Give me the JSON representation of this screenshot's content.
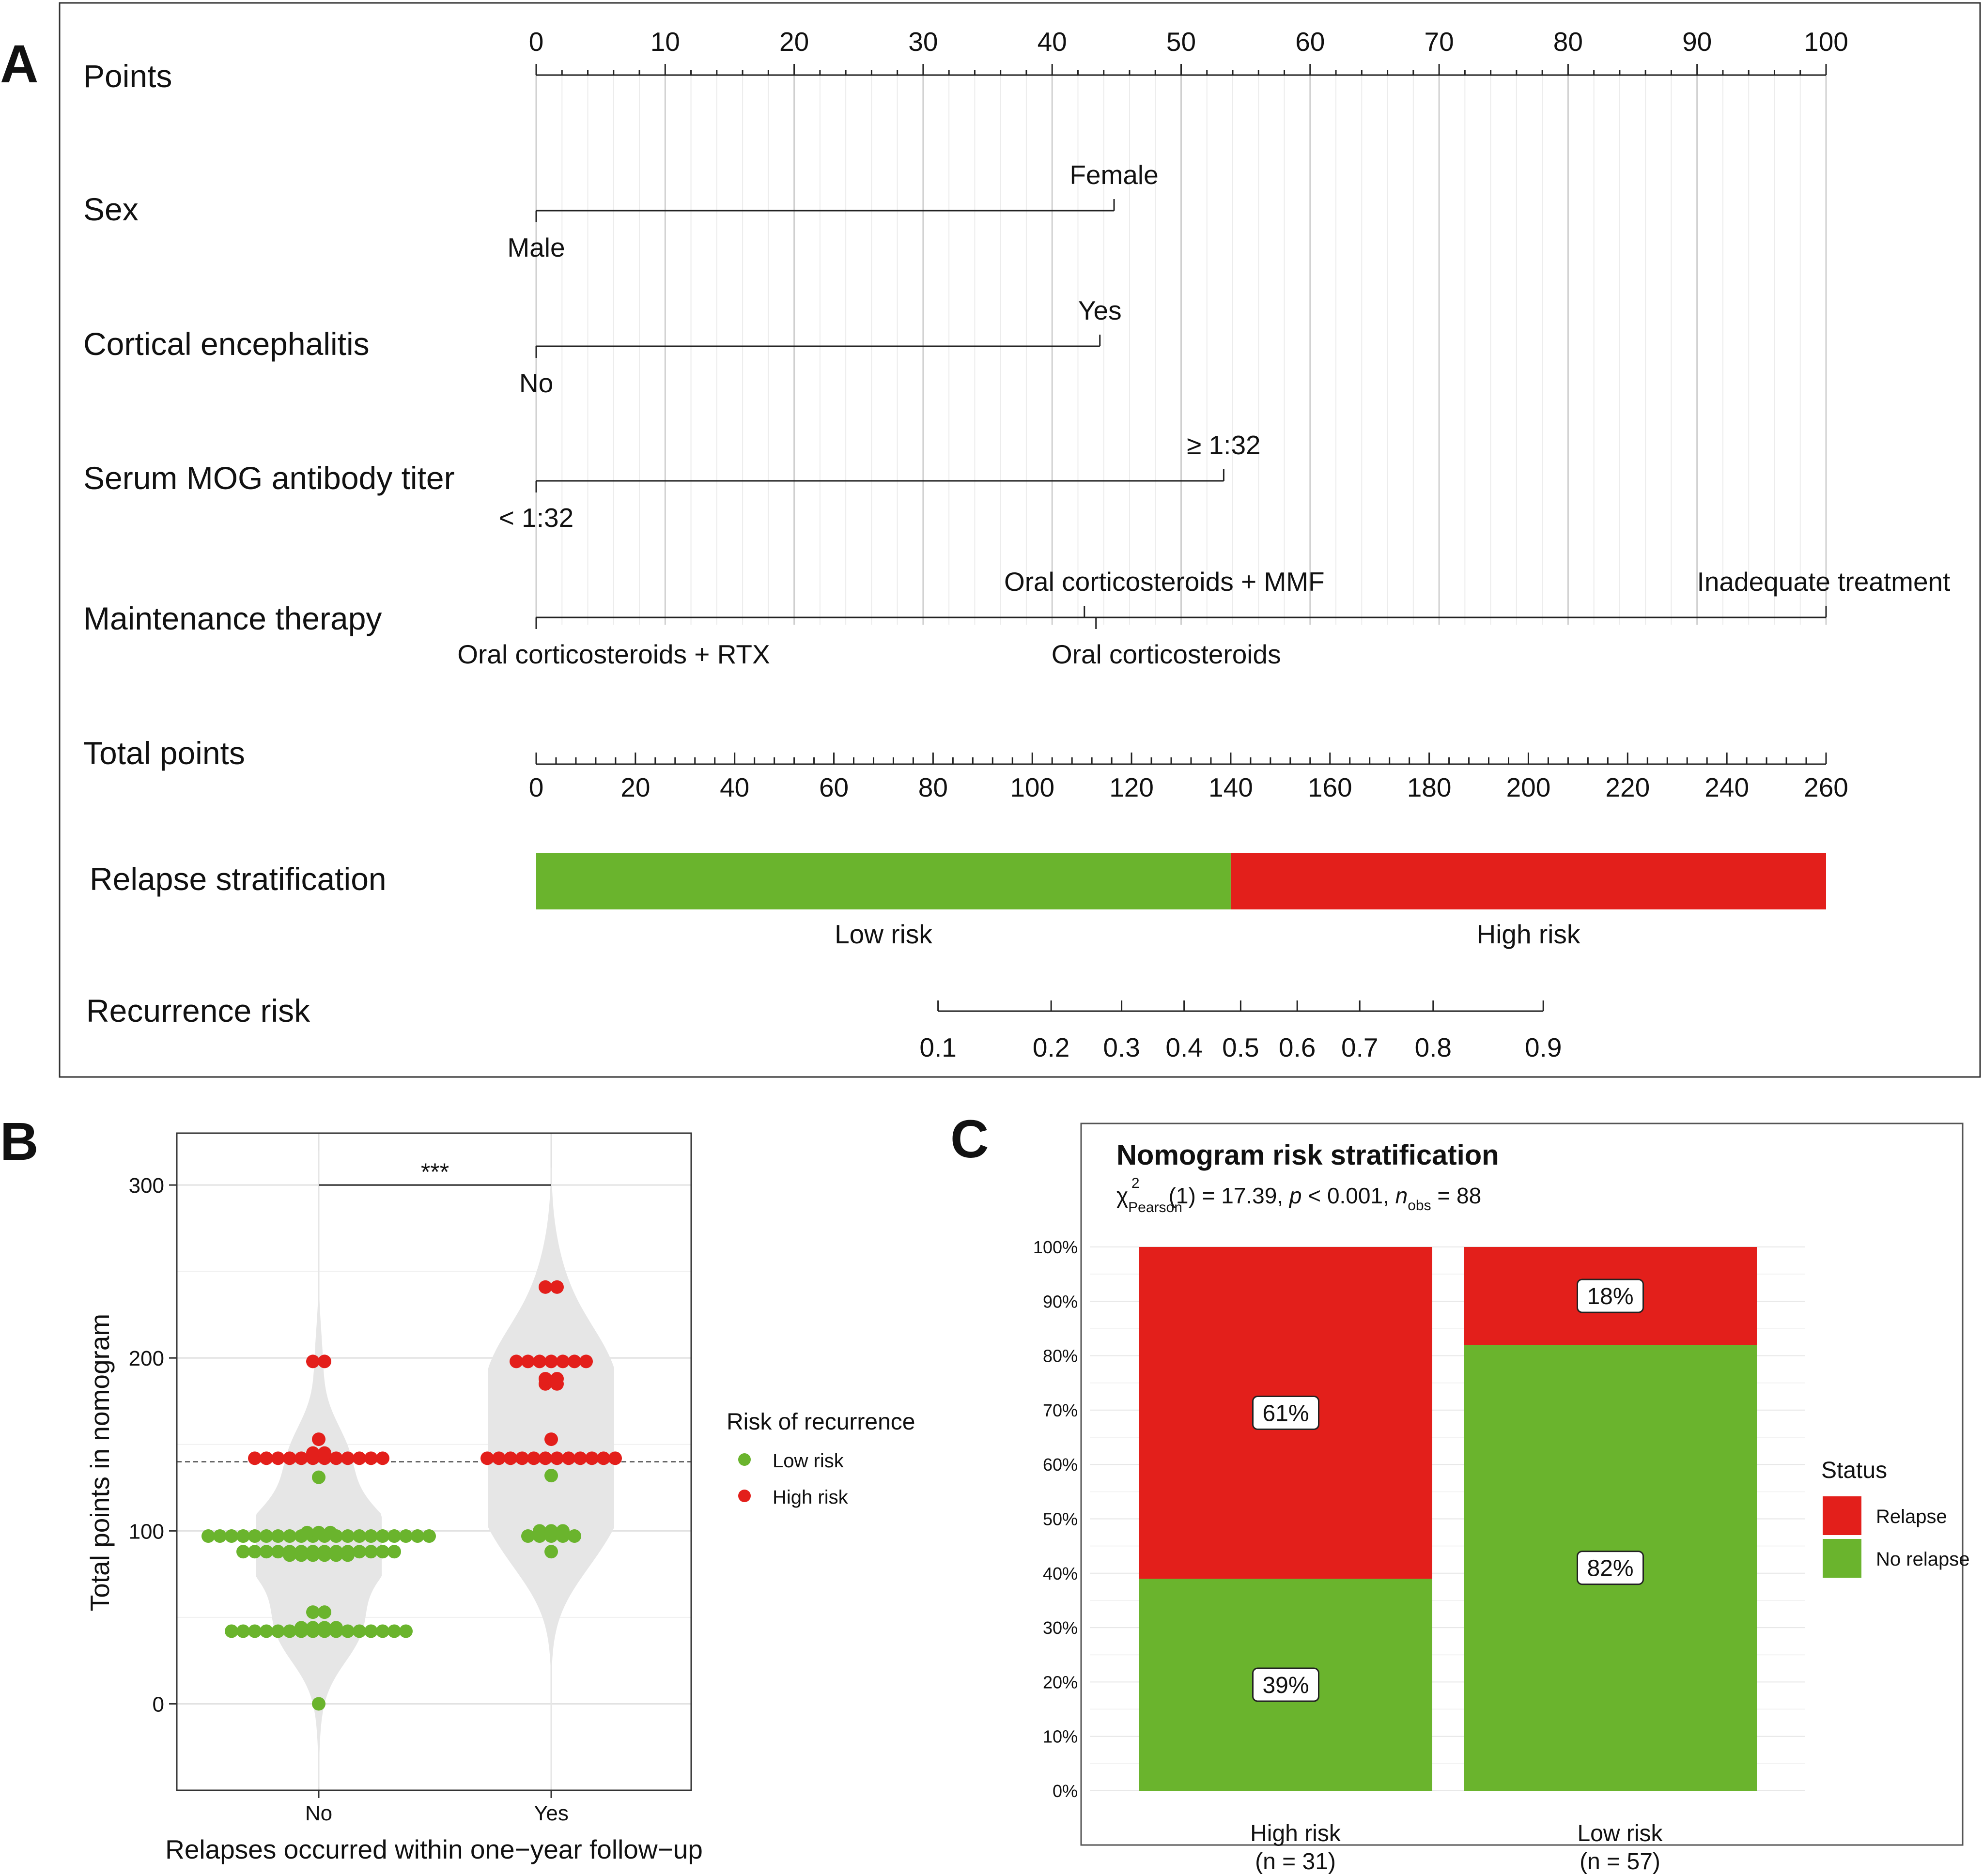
{
  "panel_labels": [
    "A",
    "B",
    "C"
  ],
  "colors": {
    "low_risk": "#6ab42d",
    "high_risk": "#e31f1b",
    "violin": "#e6e6e6",
    "grid": "#d9d9d9",
    "frame": "#333333"
  },
  "chart_data": [
    {
      "type": "nomogram",
      "panel": "A",
      "points_axis": {
        "label": "Points",
        "range": [
          0,
          100
        ],
        "major_ticks": [
          0,
          10,
          20,
          30,
          40,
          50,
          60,
          70,
          80,
          90,
          100
        ],
        "minor_step": 2
      },
      "variables": [
        {
          "name": "Sex",
          "levels": [
            {
              "label": "Male",
              "points": 0,
              "side": "below"
            },
            {
              "label": "Female",
              "points": 44.8,
              "side": "above"
            }
          ]
        },
        {
          "name": "Cortical encephalitis",
          "levels": [
            {
              "label": "No",
              "points": 0,
              "side": "below"
            },
            {
              "label": "Yes",
              "points": 43.7,
              "side": "above"
            }
          ]
        },
        {
          "name": "Serum MOG antibody titer",
          "levels": [
            {
              "label": "< 1:32",
              "points": 0,
              "side": "below"
            },
            {
              "label": "≥ 1:32",
              "points": 53.3,
              "side": "above"
            }
          ]
        },
        {
          "name": "Maintenance therapy",
          "levels": [
            {
              "label": "Oral corticosteroids + RTX",
              "points": 0,
              "side": "below"
            },
            {
              "label": "Oral corticosteroids + MMF",
              "points": 42.5,
              "side": "above"
            },
            {
              "label": "Oral corticosteroids",
              "points": 43.4,
              "side": "below"
            },
            {
              "label": "Inadequate treatment",
              "points": 100,
              "side": "above"
            }
          ]
        }
      ],
      "total_points_axis": {
        "label": "Total points",
        "range": [
          0,
          260
        ],
        "major_ticks": [
          0,
          20,
          40,
          60,
          80,
          100,
          120,
          140,
          160,
          180,
          200,
          220,
          240,
          260
        ],
        "minor_step": 4
      },
      "relapse_stratification": {
        "label": "Relapse stratification",
        "cutoff_total_points": 140,
        "segments": [
          {
            "label": "Low risk",
            "from": 0,
            "to": 140
          },
          {
            "label": "High risk",
            "from": 140,
            "to": 260
          }
        ]
      },
      "recurrence_risk_axis": {
        "label": "Recurrence risk",
        "ticks": [
          {
            "label": "0.1",
            "total_points": 81
          },
          {
            "label": "0.2",
            "total_points": 103.8
          },
          {
            "label": "0.3",
            "total_points": 118
          },
          {
            "label": "0.4",
            "total_points": 130.6
          },
          {
            "label": "0.5",
            "total_points": 142
          },
          {
            "label": "0.6",
            "total_points": 153.4
          },
          {
            "label": "0.7",
            "total_points": 166
          },
          {
            "label": "0.8",
            "total_points": 180.8
          },
          {
            "label": "0.9",
            "total_points": 203
          }
        ]
      }
    },
    {
      "type": "violin-dot",
      "panel": "B",
      "xlabel": "Relapses occurred within one−year follow−up",
      "ylabel": "Total points in nomogram",
      "categories": [
        "No",
        "Yes"
      ],
      "yticks": [
        0,
        100,
        200,
        300
      ],
      "ylim": [
        -50,
        330
      ],
      "cutoff": 140,
      "significance": "***",
      "legend": {
        "title": "Risk of recurrence",
        "items": [
          "Low risk",
          "High risk"
        ]
      },
      "series": [
        {
          "name": "No",
          "points": [
            {
              "y": 0,
              "risk": "Low risk"
            },
            {
              "y": 42,
              "risk": "Low risk",
              "n": 16
            },
            {
              "y": 44,
              "risk": "Low risk",
              "n": 4
            },
            {
              "y": 53,
              "risk": "Low risk",
              "n": 2
            },
            {
              "y": 86,
              "risk": "Low risk",
              "n": 6
            },
            {
              "y": 88,
              "risk": "Low risk",
              "n": 14
            },
            {
              "y": 97,
              "risk": "Low risk",
              "n": 20
            },
            {
              "y": 99,
              "risk": "Low risk",
              "n": 3
            },
            {
              "y": 131,
              "risk": "Low risk"
            },
            {
              "y": 142,
              "risk": "High risk",
              "n": 12
            },
            {
              "y": 145,
              "risk": "High risk",
              "n": 2
            },
            {
              "y": 153,
              "risk": "High risk"
            },
            {
              "y": 198,
              "risk": "High risk",
              "n": 2
            }
          ]
        },
        {
          "name": "Yes",
          "points": [
            {
              "y": 88,
              "risk": "Low risk"
            },
            {
              "y": 97,
              "risk": "Low risk",
              "n": 5
            },
            {
              "y": 100,
              "risk": "Low risk",
              "n": 3
            },
            {
              "y": 132,
              "risk": "Low risk"
            },
            {
              "y": 142,
              "risk": "High risk",
              "n": 12
            },
            {
              "y": 153,
              "risk": "High risk"
            },
            {
              "y": 185,
              "risk": "High risk",
              "n": 2
            },
            {
              "y": 188,
              "risk": "High risk",
              "n": 2
            },
            {
              "y": 198,
              "risk": "High risk",
              "n": 7
            },
            {
              "y": 241,
              "risk": "High risk",
              "n": 2
            }
          ]
        }
      ]
    },
    {
      "type": "stacked-bar",
      "panel": "C",
      "title": "Nomogram risk stratification",
      "subtitle": {
        "chi": "χ",
        "sub": "Pearson",
        "sup": "2",
        "df": "(1) = 17.39, ",
        "p_italic": "p",
        "p_text": " < 0.001, ",
        "n_italic": "n",
        "n_sub": "obs",
        "n_text": " = 88"
      },
      "categories": [
        "High risk",
        "Low risk"
      ],
      "category_n": [
        "(n = 31)",
        "(n = 57)"
      ],
      "yticks": [
        "0%",
        "10%",
        "20%",
        "30%",
        "40%",
        "50%",
        "60%",
        "70%",
        "80%",
        "90%",
        "100%"
      ],
      "ylim": [
        0,
        100
      ],
      "series": [
        {
          "name": "No relapse",
          "values": [
            39,
            82
          ],
          "labels": [
            "39%",
            "82%"
          ]
        },
        {
          "name": "Relapse",
          "values": [
            61,
            18
          ],
          "labels": [
            "61%",
            "18%"
          ]
        }
      ],
      "legend": {
        "title": "Status",
        "items": [
          "Relapse",
          "No relapse"
        ]
      }
    }
  ]
}
